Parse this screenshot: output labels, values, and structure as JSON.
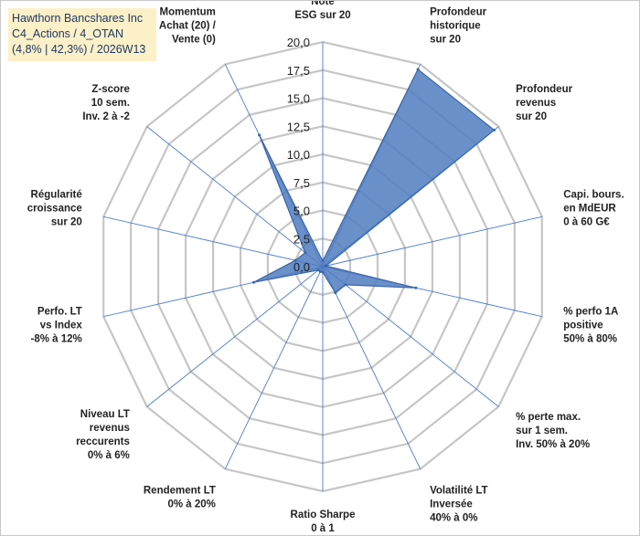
{
  "title": {
    "line1": "Hawthorn Bancshares Inc",
    "line2": "C4_Actions / 4_OTAN",
    "line3": "(4,8% | 42,3%) / 2026W13"
  },
  "colors": {
    "fill": "#4f7dbf",
    "stroke": "#3a66a8",
    "grid": "#c6c6c6",
    "spoke": "#4a7bd0",
    "title_bg": "#fbf0c8"
  },
  "chart_data": {
    "type": "radar",
    "rmin": 0,
    "rmax": 20,
    "ticks": [
      "0,0",
      "2,5",
      "5,0",
      "7,5",
      "10,0",
      "12,5",
      "15,0",
      "17,5",
      "20,0"
    ],
    "tick_values": [
      0,
      2.5,
      5,
      7.5,
      10,
      12.5,
      15,
      17.5,
      20
    ],
    "axes": [
      {
        "lines": [
          "Note",
          "ESG sur 20"
        ],
        "value": 0.5
      },
      {
        "lines": [
          "Profondeur",
          "historique",
          "sur 20"
        ],
        "value": 19.5
      },
      {
        "lines": [
          "Profondeur",
          "revenus",
          "sur 20"
        ],
        "value": 19.5
      },
      {
        "lines": [
          "Capi. bours.",
          "en MdEUR",
          "0 à 60 G€"
        ],
        "value": 0.3
      },
      {
        "lines": [
          "% perfo 1A",
          "positive",
          "50% à 80%"
        ],
        "value": 8.5
      },
      {
        "lines": [
          "% perte max.",
          "sur 1 sem.",
          "Inv. 50% à 20%"
        ],
        "value": 2.6
      },
      {
        "lines": [
          "Volatilité LT",
          "Inversée",
          "40% à 0%"
        ],
        "value": 2.6
      },
      {
        "lines": [
          "Ratio Sharpe",
          "0 à 1"
        ],
        "value": 0.5
      },
      {
        "lines": [
          "Rendement LT",
          "0% à 20%"
        ],
        "value": 0.5
      },
      {
        "lines": [
          "Niveau LT",
          "revenus",
          "reccurents",
          "0% à 6%"
        ],
        "value": 0.5
      },
      {
        "lines": [
          "Perfo. LT",
          "vs Index",
          "-8% à 12%"
        ],
        "value": 6.3
      },
      {
        "lines": [
          "Régularité",
          "croissance",
          "sur 20"
        ],
        "value": 2.5
      },
      {
        "lines": [
          "Z-score",
          "10 sem.",
          "Inv. 2 à -2"
        ],
        "value": 2.0
      },
      {
        "lines": [
          "Momentum",
          "Achat (20) /",
          "Vente (0)"
        ],
        "value": 13.0
      }
    ]
  }
}
